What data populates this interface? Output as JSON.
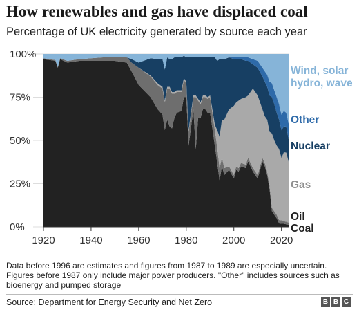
{
  "header": {
    "title": "How renewables and gas have displaced coal",
    "subtitle": "Percentage of UK electricity generated by source each year"
  },
  "footer": {
    "note": "Data before 1996 are estimates and figures from 1987 to 1989 are especially uncertain. Figures before 1987 only include major power producers. \"Other\" includes sources such as bioenergy and pumped storage",
    "source": "Source: Department for Energy Security and Net Zero",
    "logo": [
      "B",
      "B",
      "C"
    ]
  },
  "chart_data": {
    "type": "area",
    "stacked": true,
    "xlim": [
      1920,
      2023
    ],
    "ylim": [
      0,
      100
    ],
    "x_ticks": [
      "1920",
      "1940",
      "1960",
      "1980",
      "2000",
      "2020"
    ],
    "y_ticks": [
      "0%",
      "25%",
      "50%",
      "75%",
      "100%"
    ],
    "grid": true,
    "x": [
      1920,
      1925,
      1926,
      1927,
      1930,
      1935,
      1940,
      1945,
      1950,
      1955,
      1957,
      1960,
      1965,
      1968,
      1970,
      1971,
      1972,
      1973,
      1974,
      1975,
      1976,
      1978,
      1979,
      1980,
      1981,
      1983,
      1984,
      1985,
      1986,
      1987,
      1988,
      1989,
      1990,
      1992,
      1993,
      1994,
      1995,
      1996,
      1998,
      2000,
      2001,
      2002,
      2003,
      2005,
      2006,
      2008,
      2010,
      2012,
      2013,
      2014,
      2015,
      2016,
      2017,
      2018,
      2019,
      2020,
      2021,
      2022,
      2023
    ],
    "series": [
      {
        "name": "Coal",
        "color": "#222222",
        "values": [
          97,
          96,
          92,
          97,
          95,
          96,
          96,
          96,
          96,
          95,
          90,
          82,
          75,
          68,
          65,
          56,
          62,
          58,
          57,
          63,
          66,
          67,
          75,
          75,
          47,
          68,
          45,
          63,
          63,
          68,
          68,
          66,
          66,
          47,
          37,
          27,
          35,
          30,
          33,
          28,
          33,
          32,
          35,
          34,
          38,
          32,
          28,
          38,
          35,
          30,
          22,
          9,
          7,
          5,
          2,
          1.8,
          1.8,
          1.5,
          1.2
        ]
      },
      {
        "name": "Oil",
        "color": "#6e6e6e",
        "values": [
          0.5,
          0.5,
          0.5,
          0.5,
          1,
          1,
          1.5,
          2,
          2,
          3,
          5,
          10,
          12,
          14,
          15,
          16,
          18,
          22,
          20,
          14,
          12,
          11,
          10,
          8,
          8,
          7,
          30,
          10,
          8,
          7,
          7,
          8,
          9,
          9,
          9,
          7,
          5,
          4,
          2,
          2,
          2,
          2,
          2,
          2,
          2,
          2,
          2,
          2,
          2,
          2,
          2,
          2,
          2,
          2,
          2,
          2,
          1.5,
          1.5,
          1.3
        ]
      },
      {
        "name": "Gas",
        "color": "#a9a9a9",
        "values": [
          0,
          0,
          0,
          0,
          0,
          0,
          0,
          0,
          0,
          0,
          0,
          0,
          0.5,
          1,
          1,
          1,
          1,
          1,
          1,
          1,
          1,
          1,
          1,
          1,
          1,
          1,
          1,
          1,
          1,
          1,
          1,
          1,
          1,
          3,
          10,
          18,
          22,
          28,
          33,
          40,
          37,
          39,
          37,
          39,
          36,
          46,
          46,
          28,
          27,
          30,
          31,
          43,
          41,
          40,
          41,
          36,
          40,
          40,
          35
        ]
      },
      {
        "name": "Nuclear",
        "color": "#173f63",
        "values": [
          0,
          0,
          0,
          0,
          0,
          0,
          0,
          0,
          0,
          0,
          2,
          3,
          10,
          14,
          16,
          18,
          17,
          16,
          19,
          20,
          19,
          19,
          13,
          14,
          42,
          22,
          22,
          24,
          26,
          22,
          22,
          23,
          22,
          39,
          40,
          45,
          35,
          35,
          30,
          27,
          25,
          24,
          23,
          21,
          20,
          14,
          16,
          19,
          20,
          19,
          21,
          21,
          21,
          19,
          17,
          16,
          15,
          15,
          13
        ]
      },
      {
        "name": "Other",
        "color": "#2e6aa9",
        "values": [
          0,
          0,
          0,
          0,
          0,
          0,
          0,
          0,
          0,
          0,
          0,
          0,
          0,
          0,
          0,
          0,
          0,
          0,
          0,
          0,
          0,
          0,
          0,
          0,
          0,
          0,
          0,
          0,
          0,
          0,
          0,
          0,
          0,
          0,
          0,
          0,
          0,
          0,
          0,
          1,
          1,
          1,
          1,
          2,
          2,
          3,
          4,
          5,
          6,
          7,
          8,
          8,
          8,
          9,
          9,
          9,
          9,
          8,
          9
        ]
      },
      {
        "name": "Wind, solar hydro, wave",
        "color": "#86b4d8",
        "values": [
          2.5,
          3.5,
          7.5,
          2.5,
          4,
          3,
          2.5,
          2,
          2,
          2,
          3,
          5,
          2.5,
          3,
          3,
          9,
          2,
          3,
          3,
          2,
          2,
          2,
          1,
          2,
          2,
          2,
          2,
          2,
          2,
          2,
          2,
          2,
          2,
          2,
          4,
          3,
          3,
          3,
          2,
          2,
          2,
          2,
          2,
          2,
          2,
          3,
          4,
          8,
          10,
          12,
          16,
          17,
          21,
          25,
          29,
          35,
          33,
          34,
          40
        ]
      }
    ],
    "legend_labels": [
      {
        "series": "Wind, solar hydro, wave",
        "lines": [
          "Wind, solar",
          "hydro, wave"
        ],
        "color": "#86b4d8"
      },
      {
        "series": "Other",
        "lines": [
          "Other"
        ],
        "color": "#2e6aa9"
      },
      {
        "series": "Nuclear",
        "lines": [
          "Nuclear"
        ],
        "color": "#173f63"
      },
      {
        "series": "Gas",
        "lines": [
          "Gas"
        ],
        "color": "#8f8f8f"
      },
      {
        "series": "Oil",
        "lines": [
          "Oil"
        ],
        "color": "#222222"
      },
      {
        "series": "Coal",
        "lines": [
          "Coal"
        ],
        "color": "#222222"
      }
    ]
  }
}
